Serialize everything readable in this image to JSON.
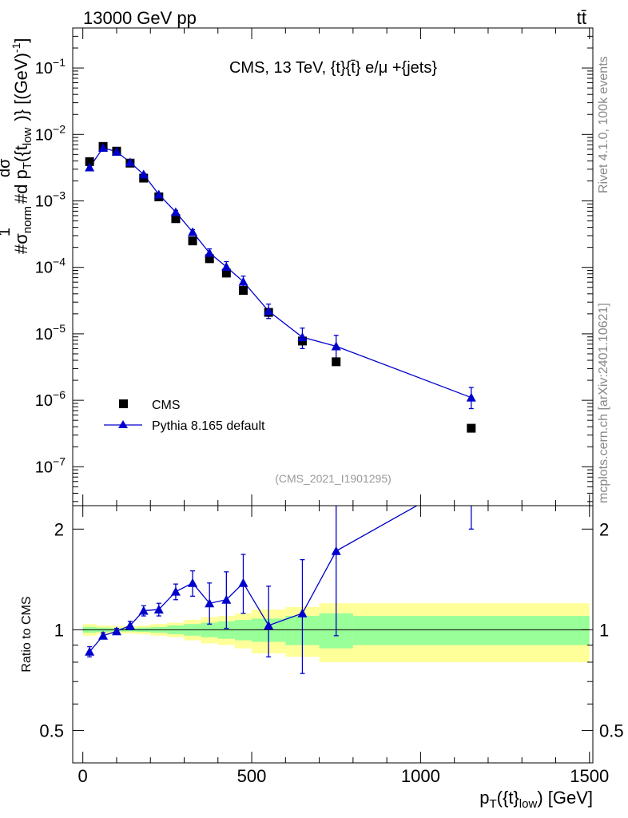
{
  "header": {
    "left": "13000 GeV pp",
    "right": "tt̄"
  },
  "side_text": {
    "version": "Rivet 4.1.0,  100k events",
    "site": "mcplots.cern.ch [arXiv:2401.10621]"
  },
  "chart_data": [
    {
      "type": "scatter",
      "panel": "main",
      "title": "CMS, 13 TeV, {t}{t̄} e/μ +{jets}",
      "watermark": "(CMS_2021_I1901295)",
      "ylabel": "#frac{1}{σnorm}#frac{dσ}{d pT({t}low)} [(GeV)^-1]",
      "ylabel_parts": {
        "frac1_num": "1",
        "frac1_den": "σ",
        "frac1_den_sub": "norm",
        "hash1": "#",
        "hash2": "#",
        "frac2_num": "dσ",
        "frac2_den": "d p",
        "frac2_den_sub": "T",
        "frac2_den_rest": "({t",
        "frac2_den_sub2": "low",
        "tail": ")} [(GeV)",
        "tail_sup": "-1",
        "tail_end": "]"
      },
      "yscale": "log",
      "ylim": [
        2.6e-08,
        0.4
      ],
      "xlim": [
        -30,
        1510
      ],
      "y_ticks": [
        {
          "value": 1e-07,
          "base": "10",
          "exp": "−7"
        },
        {
          "value": 1e-06,
          "base": "10",
          "exp": "−6"
        },
        {
          "value": 1e-05,
          "base": "10",
          "exp": "−5"
        },
        {
          "value": 0.0001,
          "base": "10",
          "exp": "−4"
        },
        {
          "value": 0.001,
          "base": "10",
          "exp": "−3"
        },
        {
          "value": 0.01,
          "base": "10",
          "exp": "−2"
        },
        {
          "value": 0.1,
          "base": "10",
          "exp": "−1"
        }
      ],
      "legend": {
        "placement": "lower-left",
        "entries": [
          {
            "label": "CMS",
            "marker": "square",
            "color": "#000000"
          },
          {
            "label": "Pythia 8.165 default",
            "marker": "triangle",
            "color": "#0000cc"
          }
        ]
      },
      "bin_edges": [
        0,
        40,
        80,
        120,
        160,
        200,
        250,
        300,
        350,
        400,
        450,
        500,
        600,
        700,
        800,
        1500
      ],
      "x": [
        20,
        60,
        100,
        140,
        180,
        225,
        275,
        325,
        375,
        425,
        475,
        550,
        650,
        750,
        1150
      ],
      "series": [
        {
          "name": "CMS",
          "color": "#000000",
          "values": [
            0.0039,
            0.0066,
            0.0056,
            0.0037,
            0.0022,
            0.00115,
            0.00054,
            0.00025,
            0.000135,
            8.2e-05,
            4.5e-05,
            2.1e-05,
            7.8e-06,
            3.8e-06,
            3.8e-07
          ]
        },
        {
          "name": "Pythia 8.165 default",
          "color": "#0000cc",
          "values": [
            0.0032,
            0.0063,
            0.0055,
            0.0038,
            0.0025,
            0.00125,
            0.00068,
            0.00034,
            0.000165,
            0.000102,
            6.1e-05,
            2.2e-05,
            8.9e-06,
            6.5e-06,
            1.1e-06
          ],
          "err_up": [
            0.00015,
            0.0002,
            0.0002,
            0.00015,
            0.0001,
            6e-05,
            4e-05,
            3e-05,
            2.5e-05,
            2e-05,
            1.3e-05,
            6e-06,
            3.3e-06,
            3e-06,
            4.6e-07
          ],
          "err_down": [
            0.00015,
            0.0002,
            0.0002,
            0.00015,
            0.0001,
            6e-05,
            4e-05,
            3e-05,
            2.5e-05,
            2e-05,
            1.3e-05,
            5e-06,
            2.9e-06,
            2.2e-06,
            3.5e-07
          ]
        }
      ]
    },
    {
      "type": "line",
      "panel": "ratio",
      "ylabel": "Ratio to CMS",
      "xlabel": "pT({t}low) [GeV]",
      "xlabel_parts": {
        "p": "p",
        "sub1": "T",
        "mid": "({t}",
        "sub2": "low",
        "end": ") [GeV]"
      },
      "yscale": "log",
      "ylim": [
        0.4,
        2.35
      ],
      "xlim": [
        -30,
        1510
      ],
      "x_ticks": [
        0,
        500,
        1000,
        1500
      ],
      "x_tick_labels": [
        "0",
        "500",
        "1000",
        "1500"
      ],
      "y_ticks": [
        0.5,
        1,
        2
      ],
      "y_tick_labels": [
        "0.5",
        "1",
        "2"
      ],
      "bin_edges": [
        0,
        40,
        80,
        120,
        160,
        200,
        250,
        300,
        350,
        400,
        450,
        500,
        600,
        700,
        800,
        1500
      ],
      "band_inner": [
        0.02,
        0.015,
        0.012,
        0.012,
        0.015,
        0.02,
        0.03,
        0.04,
        0.05,
        0.06,
        0.07,
        0.08,
        0.1,
        0.12,
        0.1
      ],
      "band_outer": [
        0.04,
        0.03,
        0.025,
        0.025,
        0.03,
        0.04,
        0.05,
        0.07,
        0.09,
        0.1,
        0.12,
        0.15,
        0.17,
        0.2,
        0.2
      ],
      "x": [
        20,
        60,
        100,
        140,
        180,
        225,
        275,
        325,
        375,
        425,
        475,
        550,
        650,
        750,
        1150
      ],
      "series": [
        {
          "name": "Pythia 8.165 default",
          "color": "#0000cc",
          "values": [
            0.86,
            0.96,
            0.99,
            1.03,
            1.14,
            1.15,
            1.3,
            1.38,
            1.2,
            1.23,
            1.38,
            1.03,
            1.12,
            1.72,
            2.9
          ],
          "err_up": [
            0.03,
            0.02,
            0.02,
            0.03,
            0.04,
            0.05,
            0.07,
            0.12,
            0.18,
            0.26,
            0.3,
            0.32,
            0.5,
            0.78,
            1.0
          ],
          "err_down": [
            0.03,
            0.02,
            0.02,
            0.03,
            0.04,
            0.05,
            0.07,
            0.12,
            0.16,
            0.22,
            0.26,
            0.2,
            0.38,
            0.76,
            0.9
          ]
        }
      ]
    }
  ]
}
